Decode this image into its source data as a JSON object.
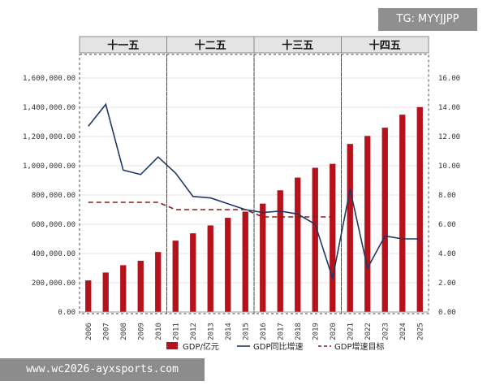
{
  "overlays": {
    "tag": "TG: MYYJJPP",
    "watermark": "www.wc2026-ayxsports.com"
  },
  "chart_data": {
    "type": "bar",
    "title": "",
    "xlabel": "",
    "ylabel": "",
    "categories": [
      "2006",
      "2007",
      "2008",
      "2009",
      "2010",
      "2011",
      "2012",
      "2013",
      "2014",
      "2015",
      "2016",
      "2017",
      "2018",
      "2019",
      "2020",
      "2021",
      "2022",
      "2023",
      "2024",
      "2025"
    ],
    "periods": [
      {
        "label": "十一五",
        "from": "2006",
        "to": "2010"
      },
      {
        "label": "十二五",
        "from": "2011",
        "to": "2015"
      },
      {
        "label": "十三五",
        "from": "2016",
        "to": "2020"
      },
      {
        "label": "十四五",
        "from": "2021",
        "to": "2025"
      }
    ],
    "y_left": {
      "range": [
        0,
        1600000
      ],
      "ticks": [
        "1,600,000.00",
        "1,400,000.00",
        "1,200,000.00",
        "1,000,000.00",
        "800,000.00",
        "600,000.00",
        "400,000.00",
        "200,000.00",
        "0.00"
      ]
    },
    "y_right": {
      "range": [
        0,
        16
      ],
      "ticks": [
        "16.00",
        "14.00",
        "12.00",
        "10.00",
        "8.00",
        "6.00",
        "4.00",
        "2.00",
        "0.00"
      ]
    },
    "series": [
      {
        "name": "GDP/亿元",
        "type": "bar",
        "axis": "left",
        "color": "#b5121b",
        "values": [
          216000,
          270000,
          320000,
          350000,
          410000,
          488000,
          538000,
          592000,
          644000,
          686000,
          741000,
          832000,
          919000,
          986000,
          1013000,
          1149000,
          1204000,
          1260000,
          1349000,
          1401000
        ]
      },
      {
        "name": "GDP同比增速",
        "type": "line",
        "axis": "right",
        "color": "#1f3864",
        "values": [
          12.7,
          14.2,
          9.7,
          9.4,
          10.6,
          9.5,
          7.9,
          7.8,
          7.4,
          7.0,
          6.8,
          6.9,
          6.7,
          6.0,
          2.3,
          8.4,
          3.0,
          5.2,
          5.0,
          5.0
        ]
      },
      {
        "name": "GDP增速目标",
        "type": "line",
        "dashed": true,
        "axis": "right",
        "color": "#8b1a1a",
        "values": [
          7.5,
          7.5,
          7.5,
          7.5,
          7.5,
          7.0,
          7.0,
          7.0,
          7.0,
          7.0,
          6.5,
          6.5,
          6.5,
          6.5,
          6.5,
          null,
          null,
          null,
          null,
          null
        ]
      }
    ],
    "legend_position": "bottom",
    "grid": true
  }
}
